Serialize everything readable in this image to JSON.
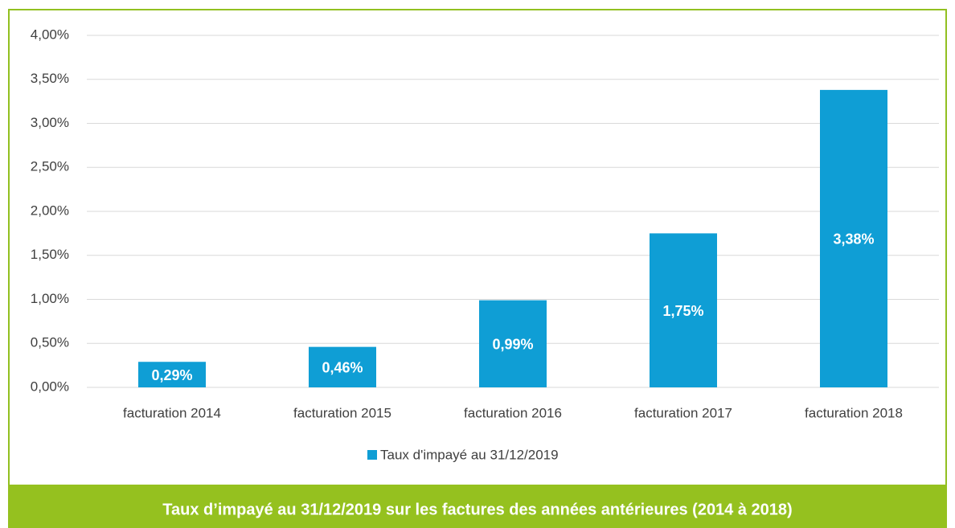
{
  "chart_data": {
    "type": "bar",
    "caption": "Taux d’impayé au 31/12/2019 sur les factures des années antérieures (2014 à 2018)",
    "categories": [
      "facturation 2014",
      "facturation 2015",
      "facturation 2016",
      "facturation 2017",
      "facturation 2018"
    ],
    "series": [
      {
        "name": "Taux d'impayé au 31/12/2019",
        "color": "#0f9ed5",
        "values": [
          0.29,
          0.46,
          0.99,
          1.75,
          3.38
        ],
        "value_labels": [
          "0,29%",
          "0,46%",
          "0,99%",
          "1,75%",
          "3,38%"
        ]
      }
    ],
    "ylim": [
      0,
      4
    ],
    "yticks": [
      {
        "value": 0,
        "label": "0,00%"
      },
      {
        "value": 0.5,
        "label": "0,50%"
      },
      {
        "value": 1,
        "label": "1,00%"
      },
      {
        "value": 1.5,
        "label": "1,50%"
      },
      {
        "value": 2,
        "label": "2,00%"
      },
      {
        "value": 2.5,
        "label": "2,50%"
      },
      {
        "value": 3,
        "label": "3,00%"
      },
      {
        "value": 3.5,
        "label": "3,50%"
      },
      {
        "value": 4,
        "label": "4,00%"
      }
    ],
    "grid": true,
    "legend": "bottom"
  }
}
